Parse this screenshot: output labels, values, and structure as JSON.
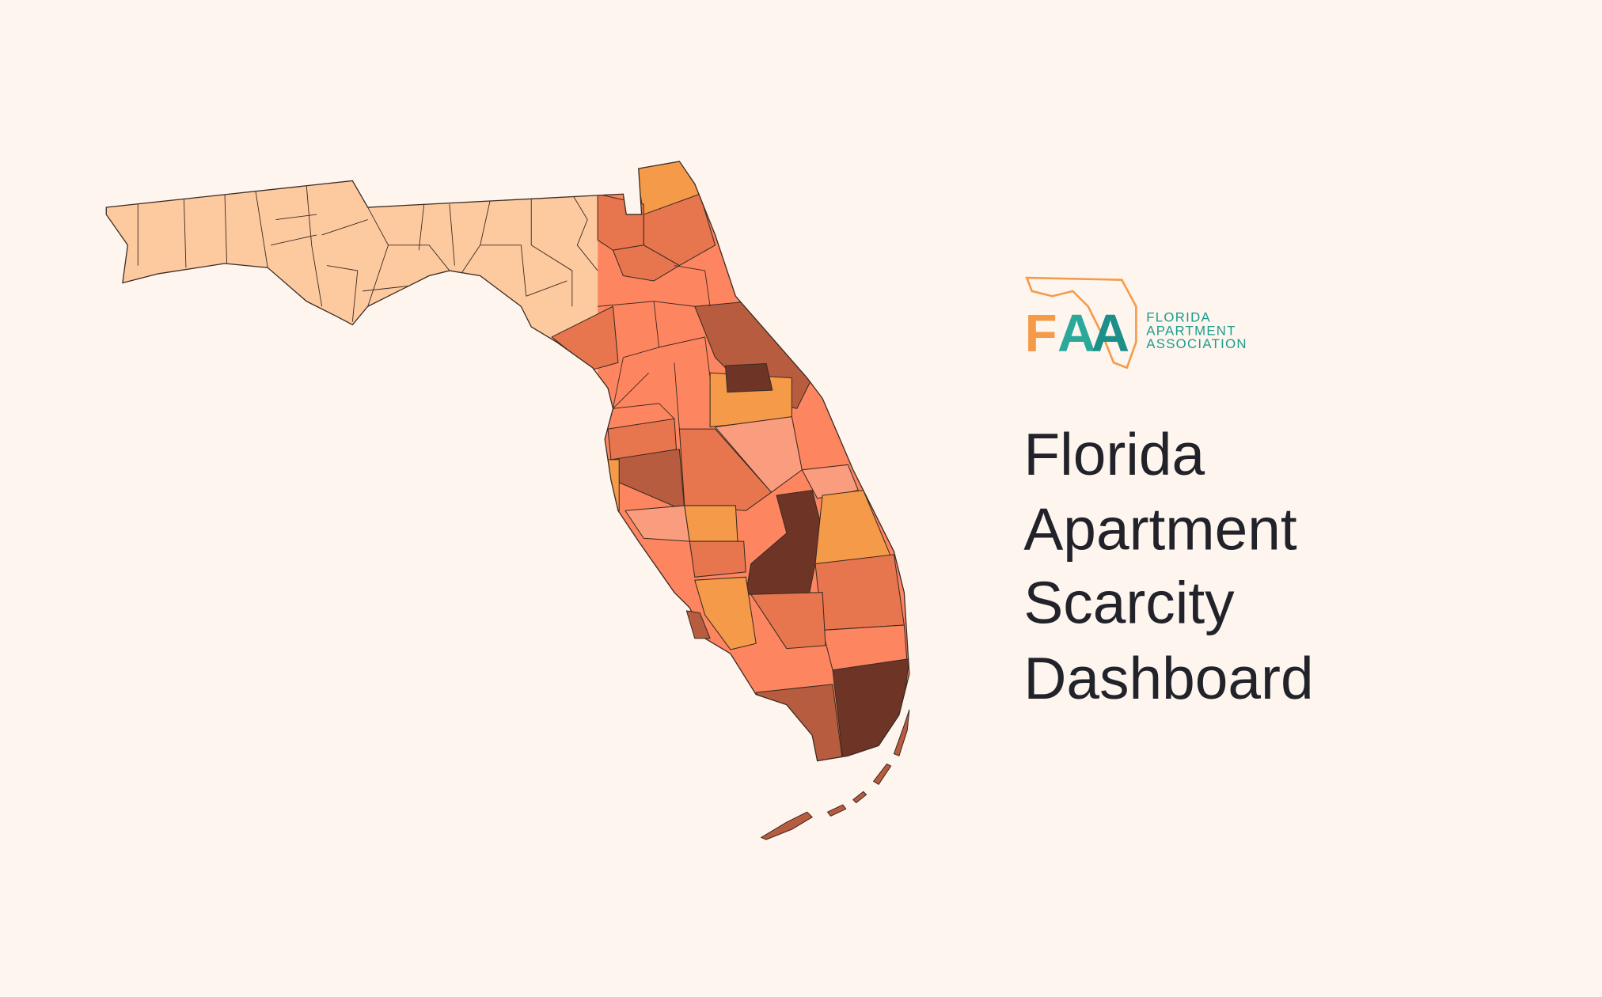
{
  "logo": {
    "letters": [
      "F",
      "A",
      "A"
    ],
    "name_lines": [
      "FLORIDA",
      "APARTMENT",
      "ASSOCIATION"
    ]
  },
  "title_lines": [
    "Florida",
    "Apartment",
    "Scarcity",
    "Dashboard"
  ]
}
